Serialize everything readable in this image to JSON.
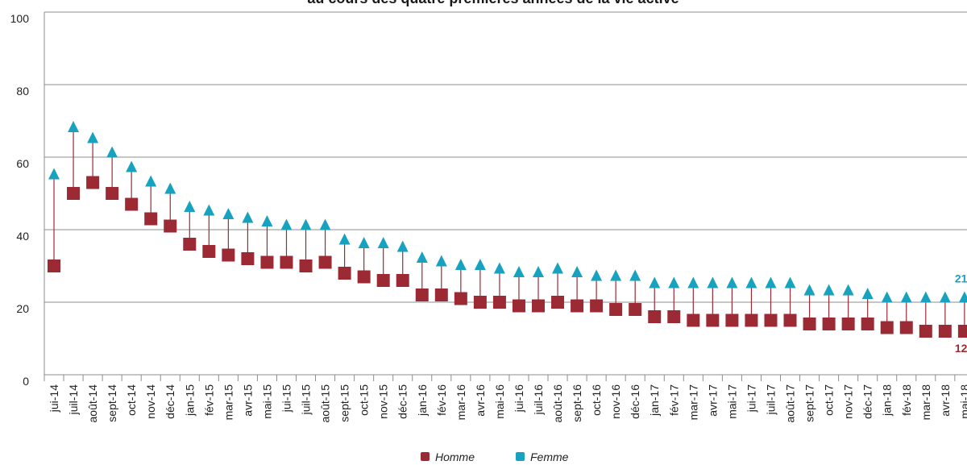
{
  "chart_data": {
    "type": "dumbbell",
    "title": "au cours des quatre premières années de la vie active",
    "categories": [
      "jui-14",
      "juil-14",
      "août-14",
      "sept-14",
      "oct-14",
      "nov-14",
      "déc-14",
      "jan-15",
      "fév-15",
      "mar-15",
      "avr-15",
      "mai-15",
      "jui-15",
      "juil-15",
      "août-15",
      "sept-15",
      "oct-15",
      "nov-15",
      "déc-15",
      "jan-16",
      "fév-16",
      "mar-16",
      "avr-16",
      "mai-16",
      "jui-16",
      "juil-16",
      "août-16",
      "sept-16",
      "oct-16",
      "nov-16",
      "déc-16",
      "jan-17",
      "fév-17",
      "mar-17",
      "avr-17",
      "mai-17",
      "jui-17",
      "juil-17",
      "août-17",
      "sept-17",
      "oct-17",
      "nov-17",
      "déc-17",
      "jan-18",
      "fév-18",
      "mar-18",
      "avr-18",
      "mai-18"
    ],
    "series": [
      {
        "name": "Homme",
        "color": "#9b2a35",
        "marker": "square",
        "values": [
          30,
          50,
          53,
          50,
          47,
          43,
          41,
          36,
          34,
          33,
          32,
          31,
          31,
          30,
          31,
          28,
          27,
          26,
          26,
          22,
          22,
          21,
          20,
          20,
          19,
          19,
          20,
          19,
          19,
          18,
          18,
          16,
          16,
          15,
          15,
          15,
          15,
          15,
          15,
          14,
          14,
          14,
          14,
          13,
          13,
          12,
          12,
          12
        ]
      },
      {
        "name": "Femme",
        "color": "#17a2c0",
        "marker": "triangle",
        "values": [
          55,
          68,
          65,
          61,
          57,
          53,
          51,
          46,
          45,
          44,
          43,
          42,
          41,
          41,
          41,
          37,
          36,
          36,
          35,
          32,
          31,
          30,
          30,
          29,
          28,
          28,
          29,
          28,
          27,
          27,
          27,
          25,
          25,
          25,
          25,
          25,
          25,
          25,
          25,
          23,
          23,
          23,
          22,
          21,
          21,
          21,
          21,
          21
        ]
      }
    ],
    "label_last": true,
    "ylim": [
      0,
      100
    ],
    "yticks": [
      0,
      20,
      40,
      60,
      80,
      100
    ],
    "grid": true,
    "legend": "bottom"
  }
}
